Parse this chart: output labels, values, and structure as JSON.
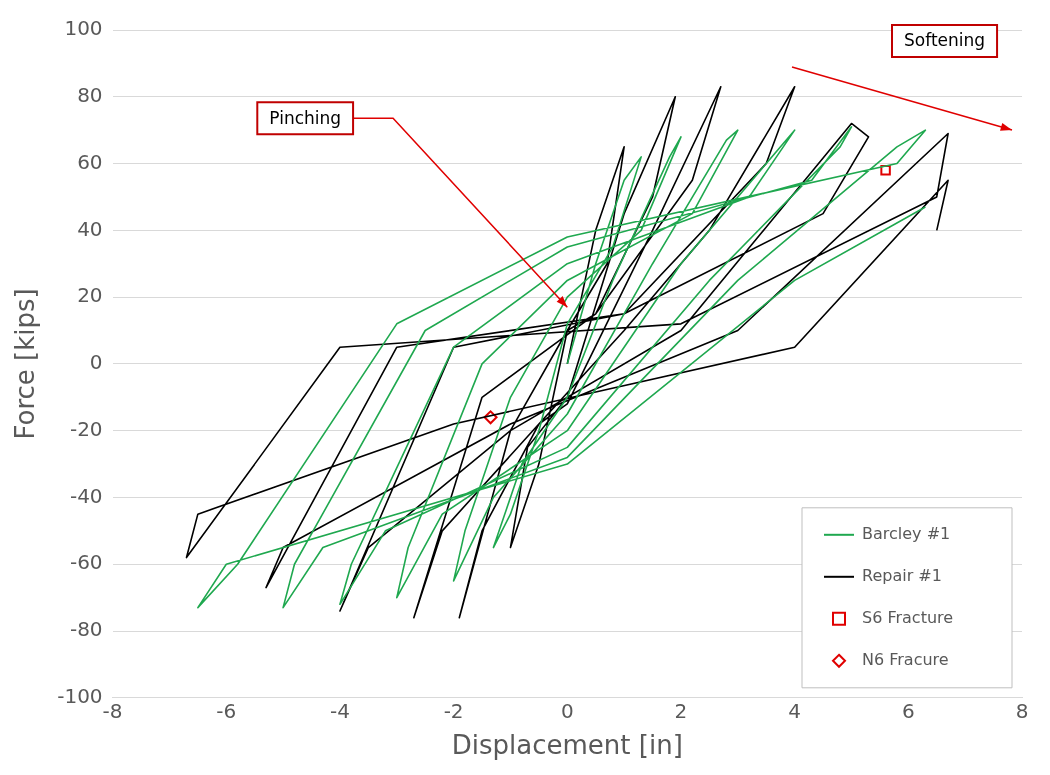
{
  "chart_data": {
    "type": "line",
    "xlabel": "Displacement [in]",
    "ylabel": "Force [kips]",
    "xlim": [
      -8,
      8
    ],
    "xticks": [
      -8,
      -6,
      -4,
      -2,
      0,
      2,
      4,
      6,
      8
    ],
    "ylim": [
      -100,
      100
    ],
    "yticks": [
      -100,
      -80,
      -60,
      -40,
      -20,
      0,
      20,
      40,
      60,
      80,
      100
    ],
    "grid": "y",
    "legend": "bottom right",
    "line_style": "solid",
    "marker": "none",
    "series": [
      {
        "name": "Barcley #1",
        "color": "#1fa84f",
        "x": [
          0,
          0.5,
          1,
          1.3,
          0.8,
          0,
          -0.5,
          -1,
          -1.3,
          -0.8,
          0,
          0.8,
          1.8,
          2,
          1.3,
          0,
          -1,
          -1.8,
          -2,
          -1.3,
          0,
          1.5,
          2.8,
          3,
          2.2,
          0,
          -1.5,
          -2.8,
          -3,
          -2.2,
          0,
          2,
          3.8,
          4,
          3.2,
          0,
          -2,
          -3.8,
          -4,
          -3.2,
          0,
          2.5,
          4.8,
          5,
          4.3,
          0,
          -2.5,
          -4.8,
          -5,
          -4.3,
          0,
          3,
          5.8,
          6.3,
          5.8,
          0,
          -3,
          -5.8,
          -6.5,
          -6,
          0,
          4,
          6.3
        ],
        "values": [
          0,
          30,
          55,
          62,
          35,
          12,
          -20,
          -45,
          -55,
          -30,
          -10,
          25,
          62,
          68,
          40,
          20,
          -10,
          -50,
          -65,
          -40,
          -15,
          30,
          67,
          70,
          45,
          25,
          0,
          -55,
          -70,
          -45,
          -20,
          30,
          66,
          70,
          50,
          30,
          5,
          -60,
          -72,
          -50,
          -25,
          25,
          65,
          71,
          55,
          35,
          10,
          -60,
          -73,
          -55,
          -28,
          25,
          65,
          70,
          60,
          38,
          12,
          -60,
          -73,
          -60,
          -30,
          25,
          47
        ]
      },
      {
        "name": "Repair #1",
        "color": "#000000",
        "x": [
          0,
          0.5,
          1,
          0.7,
          0,
          -0.5,
          -1,
          -0.7,
          0,
          1,
          1.9,
          1.5,
          0.5,
          0,
          -1,
          -1.9,
          -1.5,
          -0.5,
          0,
          1.5,
          2.7,
          2.2,
          0.5,
          -1.5,
          -2.7,
          -2.2,
          -0.5,
          1,
          2.5,
          4,
          3.5,
          1,
          -2,
          -4,
          -3.5,
          -1,
          2,
          5,
          5.3,
          4.5,
          1,
          -3,
          -5.3,
          -5,
          -1,
          3,
          6.7,
          6.5,
          2,
          -4,
          -6.7,
          -6.5,
          -2,
          4,
          6.7,
          6.5
        ],
        "values": [
          0,
          40,
          65,
          30,
          10,
          -30,
          -55,
          -25,
          -10,
          45,
          80,
          50,
          15,
          10,
          -20,
          -76,
          -50,
          -18,
          -12,
          40,
          83,
          55,
          15,
          -10,
          -76,
          -50,
          -18,
          10,
          40,
          83,
          60,
          15,
          5,
          -74,
          -55,
          -20,
          10,
          72,
          68,
          45,
          15,
          5,
          -67,
          -55,
          -18,
          10,
          69,
          50,
          12,
          5,
          -58,
          -45,
          -18,
          5,
          55,
          40
        ]
      },
      {
        "name": "S6 Fracture",
        "type": "scatter",
        "marker": "square",
        "color": "#e00000",
        "x": [
          5.6
        ],
        "values": [
          58
        ]
      },
      {
        "name": "N6 Fracure",
        "type": "scatter",
        "marker": "diamond",
        "color": "#e00000",
        "x": [
          -1.35
        ],
        "values": [
          -16
        ]
      }
    ],
    "annotations": [
      {
        "text": "Pinching",
        "x": 0,
        "y": 17
      },
      "Softening"
    ]
  }
}
